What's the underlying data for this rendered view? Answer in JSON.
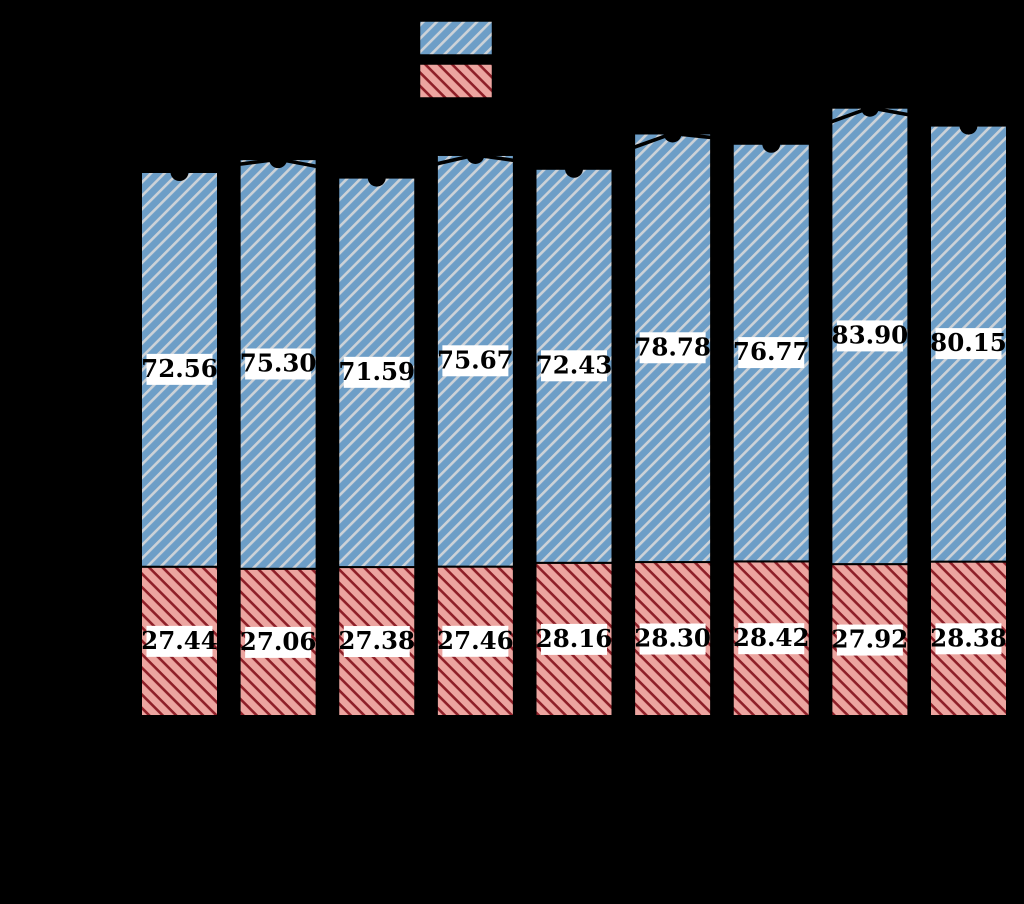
{
  "background": "#000000",
  "chart_data": {
    "type": "bar",
    "stacked": true,
    "orientation": "vertical",
    "n_categories": 9,
    "axes_visible": false,
    "tick_labels_visible": false,
    "bar_edge_color": "#000000",
    "series": [
      {
        "name": "bottom-pink-hatched-segment",
        "fill": "#eca5a0",
        "hatch": "\\",
        "hatch_color": "#8e1f28",
        "values": [
          27.44,
          27.06,
          27.38,
          27.46,
          28.16,
          28.3,
          28.42,
          27.92,
          28.38
        ],
        "labels": [
          "27.44",
          "27.06",
          "27.38",
          "27.46",
          "28.16",
          "28.30",
          "28.42",
          "27.92",
          "28.38"
        ]
      },
      {
        "name": "top-blue-hatched-segment",
        "fill": "#6d9ec7",
        "hatch": "/",
        "hatch_color": "#ccd2d8",
        "values": [
          72.56,
          75.3,
          71.59,
          75.67,
          72.43,
          78.78,
          76.77,
          83.9,
          80.15
        ],
        "labels": [
          "72.56",
          "75.30",
          "71.59",
          "75.67",
          "72.43",
          "78.78",
          "76.77",
          "83.90",
          "80.15"
        ]
      }
    ],
    "totals_line": {
      "color": "#000000",
      "marker": "circle",
      "marker_color": "#000000",
      "values": [
        100.0,
        102.36,
        98.97,
        103.13,
        100.59,
        107.08,
        105.19,
        111.82,
        108.53
      ]
    },
    "value_labels": {
      "background": "#ffffff",
      "color": "#000000",
      "bold": true
    },
    "legend": {
      "position": "top-center",
      "text_visible": false,
      "swatches": [
        {
          "name": "blue-hatched-swatch",
          "fill": "#6d9ec7",
          "hatch": "/",
          "hatch_color": "#ccd2d8"
        },
        {
          "name": "pink-hatched-swatch",
          "fill": "#eca5a0",
          "hatch": "\\",
          "hatch_color": "#8e1f28"
        }
      ]
    }
  }
}
